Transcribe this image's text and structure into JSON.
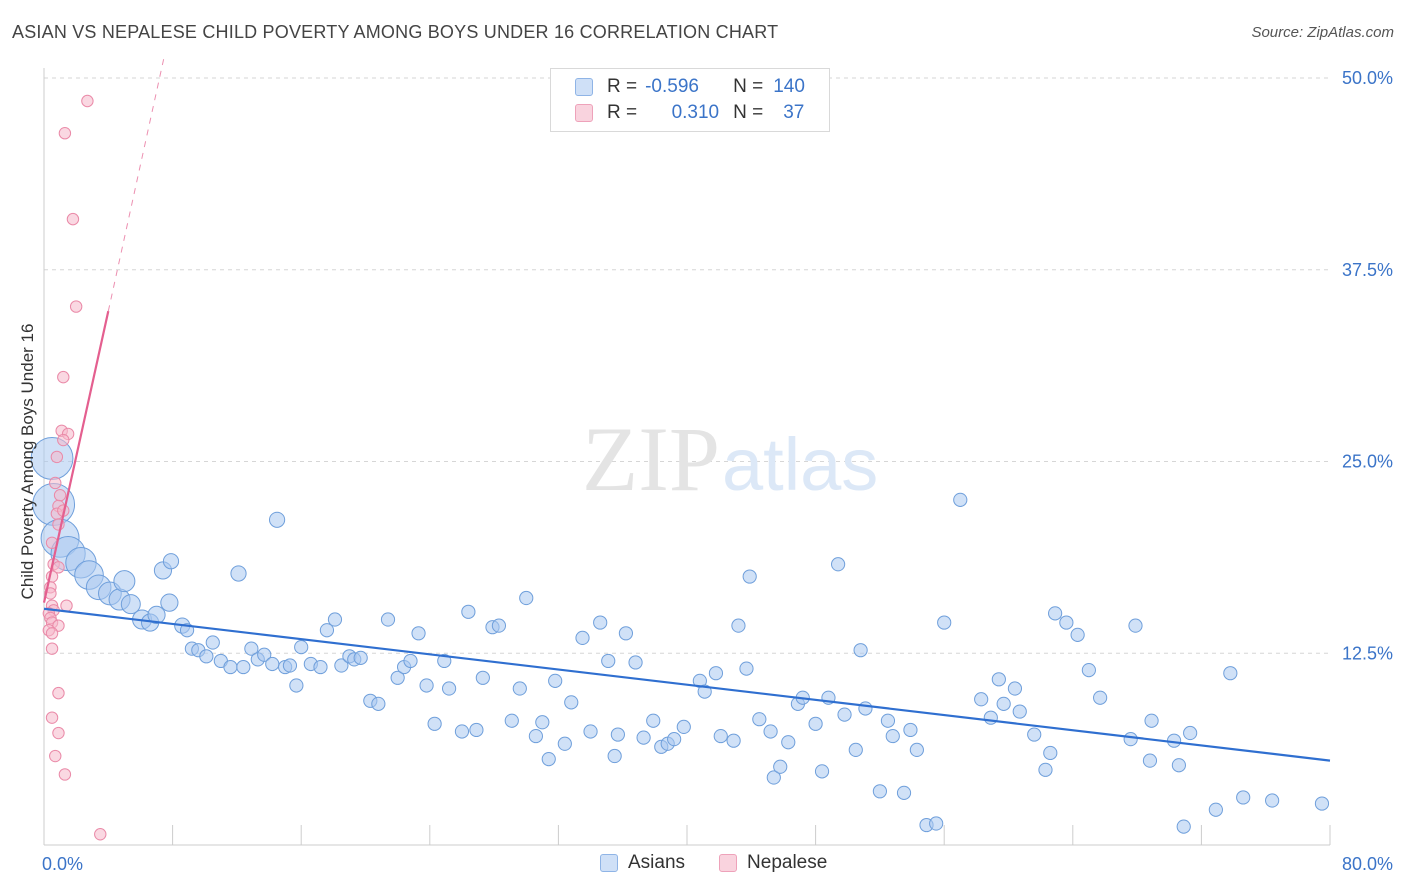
{
  "title": "ASIAN VS NEPALESE CHILD POVERTY AMONG BOYS UNDER 16 CORRELATION CHART",
  "source": "Source: ZipAtlas.com",
  "watermark": {
    "zip": "ZIP",
    "atlas": "atlas"
  },
  "legend": {
    "rows": [
      {
        "r_label": "R =",
        "r_value": "-0.596",
        "n_label": "N =",
        "n_value": "140",
        "color": "#a9c8f0"
      },
      {
        "r_label": "R =",
        "r_value": "0.310",
        "n_label": "N =",
        "n_value": "37",
        "color": "#f5b8cb"
      }
    ]
  },
  "bottom_legend": [
    {
      "label": "Asians",
      "color": "#a9c8f0"
    },
    {
      "label": "Nepalese",
      "color": "#f5b8cb"
    }
  ],
  "chart_data": {
    "type": "scatter",
    "title": "ASIAN VS NEPALESE CHILD POVERTY AMONG BOYS UNDER 16 CORRELATION CHART",
    "xlabel": "",
    "ylabel": "Child Poverty Among Boys Under 16",
    "xlim": [
      0,
      80
    ],
    "ylim": [
      0,
      50
    ],
    "x_tick_labels": [
      "0.0%",
      "80.0%"
    ],
    "y_tick_labels": [
      "12.5%",
      "25.0%",
      "37.5%",
      "50.0%"
    ],
    "y_ticks": [
      12.5,
      25,
      37.5,
      50
    ],
    "grid": true,
    "legend_position": "top-center",
    "series": [
      {
        "name": "Asians",
        "color": "#a9c8f0",
        "stroke": "#6f9fdb",
        "trend": {
          "x0": 0,
          "y0": 15.4,
          "x1": 80,
          "y1": 5.5,
          "color": "#2f6fd0"
        },
        "points": [
          [
            0.5,
            25.2,
            2.2
          ],
          [
            0.6,
            22.2,
            2.2
          ],
          [
            1.0,
            20.0,
            2.0
          ],
          [
            1.5,
            19.0,
            1.8
          ],
          [
            2.3,
            18.4,
            1.6
          ],
          [
            2.8,
            17.6,
            1.5
          ],
          [
            3.4,
            16.8,
            1.3
          ],
          [
            4.1,
            16.4,
            1.2
          ],
          [
            4.7,
            16.0,
            1.1
          ],
          [
            5.0,
            17.2,
            1.1
          ],
          [
            5.4,
            15.7,
            1.0
          ],
          [
            6.1,
            14.7,
            1.0
          ],
          [
            6.6,
            14.5,
            0.9
          ],
          [
            7.0,
            15.0,
            0.9
          ],
          [
            7.4,
            17.9,
            0.9
          ],
          [
            7.8,
            15.8,
            0.9
          ],
          [
            7.9,
            18.5,
            0.8
          ],
          [
            8.6,
            14.3,
            0.8
          ],
          [
            8.9,
            14.0,
            0.7
          ],
          [
            9.2,
            12.8,
            0.7
          ],
          [
            9.6,
            12.7,
            0.7
          ],
          [
            10.1,
            12.3,
            0.7
          ],
          [
            10.5,
            13.2,
            0.7
          ],
          [
            11.0,
            12.0,
            0.7
          ],
          [
            11.6,
            11.6,
            0.7
          ],
          [
            12.1,
            17.7,
            0.8
          ],
          [
            12.4,
            11.6,
            0.7
          ],
          [
            12.9,
            12.8,
            0.7
          ],
          [
            13.3,
            12.1,
            0.7
          ],
          [
            13.7,
            12.4,
            0.7
          ],
          [
            14.2,
            11.8,
            0.7
          ],
          [
            14.5,
            21.2,
            0.8
          ],
          [
            15.0,
            11.6,
            0.7
          ],
          [
            15.3,
            11.7,
            0.7
          ],
          [
            15.7,
            10.4,
            0.7
          ],
          [
            16.0,
            12.9,
            0.7
          ],
          [
            16.6,
            11.8,
            0.7
          ],
          [
            17.2,
            11.6,
            0.7
          ],
          [
            17.6,
            14.0,
            0.7
          ],
          [
            18.1,
            14.7,
            0.7
          ],
          [
            18.5,
            11.7,
            0.7
          ],
          [
            19.0,
            12.3,
            0.7
          ],
          [
            19.3,
            12.1,
            0.7
          ],
          [
            19.7,
            12.2,
            0.7
          ],
          [
            20.3,
            9.4,
            0.7
          ],
          [
            20.8,
            9.2,
            0.7
          ],
          [
            21.4,
            14.7,
            0.7
          ],
          [
            22.0,
            10.9,
            0.7
          ],
          [
            22.4,
            11.6,
            0.7
          ],
          [
            22.8,
            12.0,
            0.7
          ],
          [
            23.3,
            13.8,
            0.7
          ],
          [
            23.8,
            10.4,
            0.7
          ],
          [
            24.3,
            7.9,
            0.7
          ],
          [
            24.9,
            12.0,
            0.7
          ],
          [
            25.2,
            10.2,
            0.7
          ],
          [
            26.0,
            7.4,
            0.7
          ],
          [
            26.4,
            15.2,
            0.7
          ],
          [
            26.9,
            7.5,
            0.7
          ],
          [
            27.3,
            10.9,
            0.7
          ],
          [
            27.9,
            14.2,
            0.7
          ],
          [
            28.3,
            14.3,
            0.7
          ],
          [
            29.1,
            8.1,
            0.7
          ],
          [
            29.6,
            10.2,
            0.7
          ],
          [
            30.0,
            16.1,
            0.7
          ],
          [
            30.6,
            7.1,
            0.7
          ],
          [
            31.0,
            8.0,
            0.7
          ],
          [
            31.4,
            5.6,
            0.7
          ],
          [
            31.8,
            10.7,
            0.7
          ],
          [
            32.4,
            6.6,
            0.7
          ],
          [
            32.8,
            9.3,
            0.7
          ],
          [
            33.5,
            13.5,
            0.7
          ],
          [
            34.0,
            7.4,
            0.7
          ],
          [
            34.6,
            14.5,
            0.7
          ],
          [
            35.1,
            12.0,
            0.7
          ],
          [
            35.5,
            5.8,
            0.7
          ],
          [
            35.7,
            7.2,
            0.7
          ],
          [
            36.2,
            13.8,
            0.7
          ],
          [
            36.8,
            11.9,
            0.7
          ],
          [
            37.3,
            7.0,
            0.7
          ],
          [
            37.9,
            8.1,
            0.7
          ],
          [
            38.4,
            6.4,
            0.7
          ],
          [
            38.8,
            6.6,
            0.7
          ],
          [
            39.2,
            6.9,
            0.7
          ],
          [
            39.8,
            7.7,
            0.7
          ],
          [
            40.8,
            10.7,
            0.7
          ],
          [
            41.1,
            10.0,
            0.7
          ],
          [
            41.8,
            11.2,
            0.7
          ],
          [
            42.1,
            7.1,
            0.7
          ],
          [
            42.9,
            6.8,
            0.7
          ],
          [
            43.2,
            14.3,
            0.7
          ],
          [
            43.7,
            11.5,
            0.7
          ],
          [
            43.9,
            17.5,
            0.7
          ],
          [
            44.5,
            8.2,
            0.7
          ],
          [
            45.2,
            7.4,
            0.7
          ],
          [
            45.4,
            4.4,
            0.7
          ],
          [
            45.8,
            5.1,
            0.7
          ],
          [
            46.3,
            6.7,
            0.7
          ],
          [
            46.9,
            9.2,
            0.7
          ],
          [
            47.2,
            9.6,
            0.7
          ],
          [
            48.0,
            7.9,
            0.7
          ],
          [
            48.4,
            4.8,
            0.7
          ],
          [
            48.8,
            9.6,
            0.7
          ],
          [
            49.4,
            18.3,
            0.7
          ],
          [
            49.8,
            8.5,
            0.7
          ],
          [
            50.5,
            6.2,
            0.7
          ],
          [
            50.8,
            12.7,
            0.7
          ],
          [
            51.1,
            8.9,
            0.7
          ],
          [
            52.0,
            3.5,
            0.7
          ],
          [
            52.5,
            8.1,
            0.7
          ],
          [
            52.8,
            7.1,
            0.7
          ],
          [
            53.5,
            3.4,
            0.7
          ],
          [
            53.9,
            7.5,
            0.7
          ],
          [
            54.3,
            6.2,
            0.7
          ],
          [
            54.9,
            1.3,
            0.7
          ],
          [
            55.5,
            1.4,
            0.7
          ],
          [
            56.0,
            14.5,
            0.7
          ],
          [
            57.0,
            22.5,
            0.7
          ],
          [
            58.3,
            9.5,
            0.7
          ],
          [
            58.9,
            8.3,
            0.7
          ],
          [
            59.4,
            10.8,
            0.7
          ],
          [
            59.7,
            9.2,
            0.7
          ],
          [
            60.4,
            10.2,
            0.7
          ],
          [
            60.7,
            8.7,
            0.7
          ],
          [
            61.6,
            7.2,
            0.7
          ],
          [
            62.3,
            4.9,
            0.7
          ],
          [
            62.6,
            6.0,
            0.7
          ],
          [
            62.9,
            15.1,
            0.7
          ],
          [
            63.6,
            14.5,
            0.7
          ],
          [
            64.3,
            13.7,
            0.7
          ],
          [
            65.0,
            11.4,
            0.7
          ],
          [
            65.7,
            9.6,
            0.7
          ],
          [
            67.6,
            6.9,
            0.7
          ],
          [
            67.9,
            14.3,
            0.7
          ],
          [
            68.8,
            5.5,
            0.7
          ],
          [
            68.9,
            8.1,
            0.7
          ],
          [
            70.3,
            6.8,
            0.7
          ],
          [
            70.6,
            5.2,
            0.7
          ],
          [
            70.9,
            1.2,
            0.7
          ],
          [
            71.3,
            7.3,
            0.7
          ],
          [
            72.9,
            2.3,
            0.7
          ],
          [
            73.8,
            11.2,
            0.7
          ],
          [
            74.6,
            3.1,
            0.7
          ],
          [
            76.4,
            2.9,
            0.7
          ],
          [
            79.5,
            2.7,
            0.7
          ]
        ]
      },
      {
        "name": "Nepalese",
        "color": "#f5b8cb",
        "stroke": "#ea8aa8",
        "trend": {
          "x0": 0,
          "y0": 15.8,
          "x1": 4.0,
          "y1": 34.8,
          "color": "#e45f8f",
          "dash_to": {
            "x": 7.5,
            "y": 51.5
          }
        },
        "points": [
          [
            2.7,
            48.5,
            0.6
          ],
          [
            1.3,
            46.4,
            0.6
          ],
          [
            1.8,
            40.8,
            0.6
          ],
          [
            2.0,
            35.1,
            0.6
          ],
          [
            1.2,
            30.5,
            0.6
          ],
          [
            1.1,
            27.0,
            0.6
          ],
          [
            1.5,
            26.8,
            0.6
          ],
          [
            1.2,
            26.4,
            0.6
          ],
          [
            0.8,
            25.3,
            0.6
          ],
          [
            0.7,
            23.6,
            0.6
          ],
          [
            1.0,
            22.8,
            0.6
          ],
          [
            0.9,
            22.1,
            0.6
          ],
          [
            0.8,
            21.6,
            0.6
          ],
          [
            1.2,
            21.8,
            0.6
          ],
          [
            0.9,
            20.9,
            0.6
          ],
          [
            0.5,
            19.7,
            0.6
          ],
          [
            0.6,
            18.3,
            0.6
          ],
          [
            0.9,
            18.1,
            0.6
          ],
          [
            0.5,
            17.5,
            0.6
          ],
          [
            0.4,
            16.8,
            0.6
          ],
          [
            0.4,
            16.4,
            0.6
          ],
          [
            0.5,
            15.6,
            0.6
          ],
          [
            0.6,
            15.3,
            0.6
          ],
          [
            1.4,
            15.6,
            0.6
          ],
          [
            0.3,
            15.1,
            0.6
          ],
          [
            0.4,
            14.8,
            0.6
          ],
          [
            0.5,
            14.5,
            0.6
          ],
          [
            0.9,
            14.3,
            0.6
          ],
          [
            0.3,
            14.0,
            0.6
          ],
          [
            0.5,
            13.8,
            0.6
          ],
          [
            0.5,
            12.8,
            0.6
          ],
          [
            0.9,
            9.9,
            0.6
          ],
          [
            0.5,
            8.3,
            0.6
          ],
          [
            0.9,
            7.3,
            0.6
          ],
          [
            0.7,
            5.8,
            0.6
          ],
          [
            1.3,
            4.6,
            0.6
          ],
          [
            3.5,
            0.7,
            0.6
          ]
        ]
      }
    ]
  }
}
